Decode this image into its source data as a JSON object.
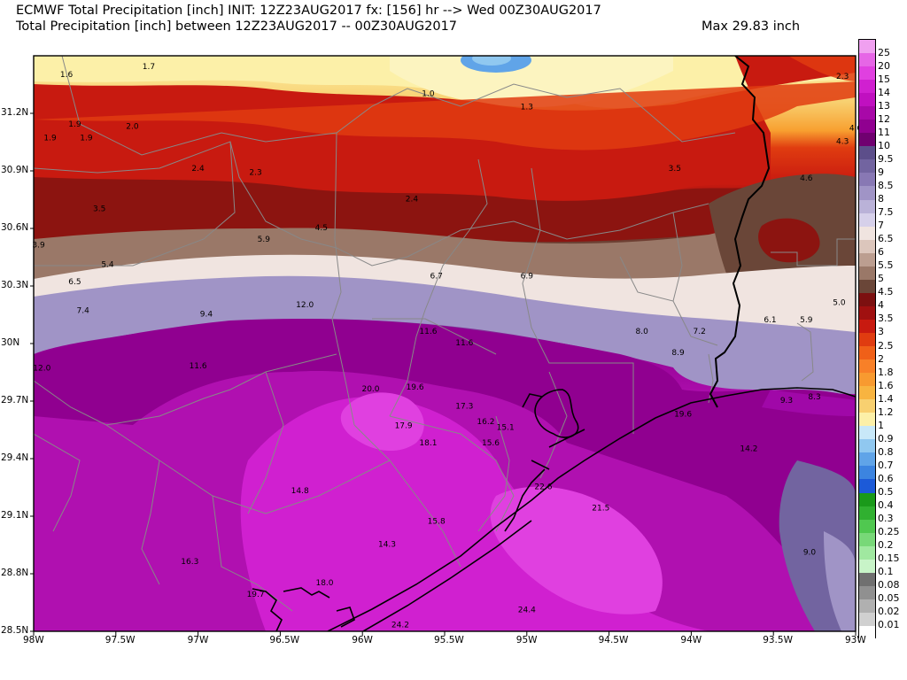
{
  "header": {
    "line1": "ECMWF Total Precipitation [inch] INIT: 12Z23AUG2017 fx: [156] hr --> Wed 00Z30AUG2017",
    "line2": "Total Precipitation [inch] between 12Z23AUG2017 -- 00Z30AUG2017",
    "max": "Max 29.83 inch"
  },
  "lon_labels": [
    "98W",
    "97.5W",
    "97W",
    "96.5W",
    "96W",
    "95.5W",
    "95W",
    "94.5W",
    "94W",
    "93.5W",
    "93W"
  ],
  "lat_labels": [
    "31.2N",
    "30.9N",
    "30.6N",
    "30.3N",
    "30N",
    "29.7N",
    "29.4N",
    "29.1N",
    "28.8N",
    "28.5N"
  ],
  "colorbar": [
    {
      "label": "25",
      "color": "#f0a0f0"
    },
    {
      "label": "20",
      "color": "#e666e6"
    },
    {
      "label": "15",
      "color": "#e040e0"
    },
    {
      "label": "14",
      "color": "#d020d0"
    },
    {
      "label": "13",
      "color": "#c010c0"
    },
    {
      "label": "12",
      "color": "#a808a8"
    },
    {
      "label": "11",
      "color": "#900090"
    },
    {
      "label": "10",
      "color": "#700070"
    },
    {
      "label": "9.5",
      "color": "#5c4e8a"
    },
    {
      "label": "9",
      "color": "#7264a0"
    },
    {
      "label": "8.5",
      "color": "#8878b4"
    },
    {
      "label": "8",
      "color": "#a094c6"
    },
    {
      "label": "7.5",
      "color": "#bab2d8"
    },
    {
      "label": "7",
      "color": "#d6d0ea"
    },
    {
      "label": "6.5",
      "color": "#f0e4e0"
    },
    {
      "label": "6",
      "color": "#dcc6bc"
    },
    {
      "label": "5.5",
      "color": "#bc9e90"
    },
    {
      "label": "5",
      "color": "#9a7868"
    },
    {
      "label": "4.5",
      "color": "#6a4638"
    },
    {
      "label": "4",
      "color": "#7c1010"
    },
    {
      "label": "3.5",
      "color": "#a01010"
    },
    {
      "label": "3",
      "color": "#c81a10"
    },
    {
      "label": "2.5",
      "color": "#e03c10"
    },
    {
      "label": "2",
      "color": "#f06018"
    },
    {
      "label": "1.8",
      "color": "#f88028"
    },
    {
      "label": "1.6",
      "color": "#f89a30"
    },
    {
      "label": "1.4",
      "color": "#f8b440"
    },
    {
      "label": "1.2",
      "color": "#f8d070"
    },
    {
      "label": "1",
      "color": "#fcf0a8"
    },
    {
      "label": "0.9",
      "color": "#c8e8f8"
    },
    {
      "label": "0.8",
      "color": "#90c8f0"
    },
    {
      "label": "0.7",
      "color": "#60a4e8"
    },
    {
      "label": "0.6",
      "color": "#3c84e0"
    },
    {
      "label": "0.5",
      "color": "#1c5ad8"
    },
    {
      "label": "0.4",
      "color": "#1a9a1a"
    },
    {
      "label": "0.3",
      "color": "#30b030"
    },
    {
      "label": "0.25",
      "color": "#50c850"
    },
    {
      "label": "0.2",
      "color": "#78d878"
    },
    {
      "label": "0.15",
      "color": "#a0e8a0"
    },
    {
      "label": "0.1",
      "color": "#c8f4c8"
    },
    {
      "label": "0.08",
      "color": "#707070"
    },
    {
      "label": "0.05",
      "color": "#909090"
    },
    {
      "label": "0.02",
      "color": "#b0b0b0"
    },
    {
      "label": "0.01",
      "color": "#d0d0d0"
    },
    {
      "label": "",
      "color": "#ffffff"
    }
  ],
  "values": [
    {
      "t": "1.6",
      "lon": -97.8,
      "lat": 31.39
    },
    {
      "t": "1.7",
      "lon": -97.3,
      "lat": 31.43
    },
    {
      "t": "1.0",
      "lon": -95.6,
      "lat": 31.29
    },
    {
      "t": "1.3",
      "lon": -95.0,
      "lat": 31.22
    },
    {
      "t": "2.3",
      "lon": -93.08,
      "lat": 31.38
    },
    {
      "t": "1.9",
      "lon": -97.75,
      "lat": 31.13
    },
    {
      "t": "1.9",
      "lon": -97.9,
      "lat": 31.06
    },
    {
      "t": "1.9",
      "lon": -97.68,
      "lat": 31.06
    },
    {
      "t": "2.0",
      "lon": -97.4,
      "lat": 31.12
    },
    {
      "t": "4.6",
      "lon": -93.0,
      "lat": 31.11
    },
    {
      "t": "4.3",
      "lon": -93.08,
      "lat": 31.04
    },
    {
      "t": "2.4",
      "lon": -97.0,
      "lat": 30.9
    },
    {
      "t": "2.3",
      "lon": -96.65,
      "lat": 30.88
    },
    {
      "t": "3.5",
      "lon": -94.1,
      "lat": 30.9
    },
    {
      "t": "4.6",
      "lon": -93.3,
      "lat": 30.85
    },
    {
      "t": "2.4",
      "lon": -95.7,
      "lat": 30.74
    },
    {
      "t": "3.5",
      "lon": -97.6,
      "lat": 30.69
    },
    {
      "t": "4.5",
      "lon": -96.25,
      "lat": 30.59
    },
    {
      "t": "5.9",
      "lon": -96.6,
      "lat": 30.53
    },
    {
      "t": "3.9",
      "lon": -97.97,
      "lat": 30.5
    },
    {
      "t": "5.4",
      "lon": -97.55,
      "lat": 30.4
    },
    {
      "t": "6.5",
      "lon": -97.75,
      "lat": 30.31
    },
    {
      "t": "6.7",
      "lon": -95.55,
      "lat": 30.34
    },
    {
      "t": "6.9",
      "lon": -95.0,
      "lat": 30.34
    },
    {
      "t": "5.0",
      "lon": -93.1,
      "lat": 30.2
    },
    {
      "t": "12.0",
      "lon": -96.35,
      "lat": 30.19
    },
    {
      "t": "7.4",
      "lon": -97.7,
      "lat": 30.16
    },
    {
      "t": "9.4",
      "lon": -96.95,
      "lat": 30.14
    },
    {
      "t": "6.1",
      "lon": -93.52,
      "lat": 30.11
    },
    {
      "t": "5.9",
      "lon": -93.3,
      "lat": 30.11
    },
    {
      "t": "11.6",
      "lon": -95.6,
      "lat": 30.05
    },
    {
      "t": "8.0",
      "lon": -94.3,
      "lat": 30.05
    },
    {
      "t": "7.2",
      "lon": -93.95,
      "lat": 30.05
    },
    {
      "t": "11.6",
      "lon": -95.38,
      "lat": 29.99
    },
    {
      "t": "8.9",
      "lon": -94.08,
      "lat": 29.94
    },
    {
      "t": "12.0",
      "lon": -97.95,
      "lat": 29.86
    },
    {
      "t": "11.6",
      "lon": -97.0,
      "lat": 29.87
    },
    {
      "t": "20.0",
      "lon": -95.95,
      "lat": 29.75
    },
    {
      "t": "19.6",
      "lon": -95.68,
      "lat": 29.76
    },
    {
      "t": "8.3",
      "lon": -93.25,
      "lat": 29.71
    },
    {
      "t": "9.3",
      "lon": -93.42,
      "lat": 29.69
    },
    {
      "t": "17.3",
      "lon": -95.38,
      "lat": 29.66
    },
    {
      "t": "19.6",
      "lon": -94.05,
      "lat": 29.62
    },
    {
      "t": "16.2",
      "lon": -95.25,
      "lat": 29.58
    },
    {
      "t": "15.1",
      "lon": -95.13,
      "lat": 29.55
    },
    {
      "t": "17.9",
      "lon": -95.75,
      "lat": 29.56
    },
    {
      "t": "18.1",
      "lon": -95.6,
      "lat": 29.47
    },
    {
      "t": "15.6",
      "lon": -95.22,
      "lat": 29.47
    },
    {
      "t": "14.2",
      "lon": -93.65,
      "lat": 29.44
    },
    {
      "t": "22.6",
      "lon": -94.9,
      "lat": 29.24
    },
    {
      "t": "14.8",
      "lon": -96.38,
      "lat": 29.22
    },
    {
      "t": "21.5",
      "lon": -94.55,
      "lat": 29.13
    },
    {
      "t": "15.8",
      "lon": -95.55,
      "lat": 29.06
    },
    {
      "t": "14.3",
      "lon": -95.85,
      "lat": 28.94
    },
    {
      "t": "9.0",
      "lon": -93.28,
      "lat": 28.9
    },
    {
      "t": "16.3",
      "lon": -97.05,
      "lat": 28.85
    },
    {
      "t": "18.0",
      "lon": -96.23,
      "lat": 28.74
    },
    {
      "t": "19.7",
      "lon": -96.65,
      "lat": 28.68
    },
    {
      "t": "24.4",
      "lon": -95.0,
      "lat": 28.6
    },
    {
      "t": "24.2",
      "lon": -95.77,
      "lat": 28.52
    }
  ]
}
